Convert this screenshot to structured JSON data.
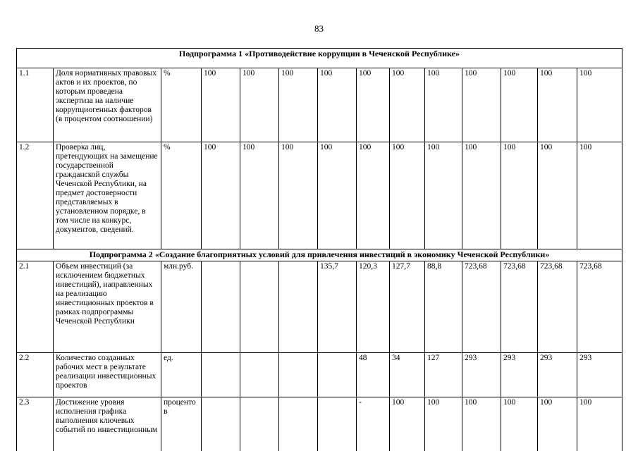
{
  "page": {
    "number": "83"
  },
  "table": {
    "sections": [
      {
        "header": "Подпрограмма 1 «Противодействие коррупции в Чеченской Республике»",
        "rows": [
          {
            "num": "1.1",
            "name": "Доля нормативных правовых актов и их проектов, по которым проведена экспертиза на наличие коррупциогенных факторов (в процентом соотношении)",
            "unit": "%",
            "values": [
              "100",
              "100",
              "100",
              "100",
              "100",
              "100",
              "100",
              "100",
              "100",
              "100",
              "100"
            ]
          },
          {
            "num": "1.2",
            "name": "Проверка лиц, претендующих на замещение государственной гражданской службы Чеченской Республики, на предмет достоверности представляемых в установленном порядке, в том числе на конкурс, документов, сведений.",
            "unit": "%",
            "values": [
              "100",
              "100",
              "100",
              "100",
              "100",
              "100",
              "100",
              "100",
              "100",
              "100",
              "100"
            ]
          }
        ]
      },
      {
        "header": "Подпрограмма 2 «Создание благоприятных условий для привлечения инвестиций в экономику Чеченской Республики»",
        "rows": [
          {
            "num": "2.1",
            "name": "Объем инвестиций (за исключением бюджетных инвестиций), направленных на реализацию инвестиционных проектов в рамках подпрограммы Чеченской Республики",
            "unit": "млн.руб.",
            "values": [
              "",
              "",
              "",
              "135,7",
              "120,3",
              "127,7",
              "88,8",
              "723,68",
              "723,68",
              "723,68",
              "723,68"
            ]
          },
          {
            "num": "2.2",
            "name": "Количество созданных рабочих мест в результате реализации инвестиционных проектов",
            "unit": "ед.",
            "values": [
              "",
              "",
              "",
              "",
              "48",
              "34",
              "127",
              "293",
              "293",
              "293",
              "293"
            ]
          },
          {
            "num": "2.3",
            "name": "Достижение уровня исполнения графика выполнения ключевых событий по инвестиционным",
            "unit": "процентов",
            "values": [
              "",
              "",
              "",
              "",
              "-",
              "100",
              "100",
              "100",
              "100",
              "100",
              "100"
            ]
          }
        ]
      }
    ]
  }
}
